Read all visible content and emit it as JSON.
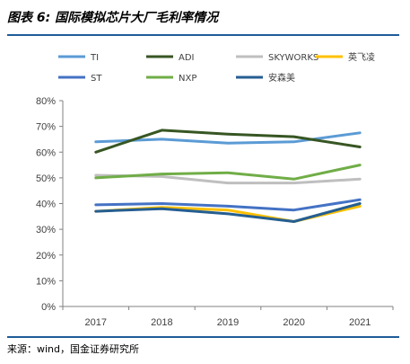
{
  "title": "图表 6: 国际模拟芯片大厂毛利率情况",
  "source": "来源：wind，国金证券研究所",
  "chart_data": {
    "type": "line",
    "x": [
      "2017",
      "2018",
      "2019",
      "2020",
      "2021"
    ],
    "ylim": [
      0,
      80
    ],
    "yticks": [
      "0%",
      "10%",
      "20%",
      "30%",
      "40%",
      "50%",
      "60%",
      "70%",
      "80%"
    ],
    "ytick_values": [
      0,
      10,
      20,
      30,
      40,
      50,
      60,
      70,
      80
    ],
    "grid": false,
    "legend_position": "top",
    "series": [
      {
        "name": "TI",
        "color": "#5b9bd5",
        "values": [
          64,
          65,
          63.5,
          64,
          67.5
        ]
      },
      {
        "name": "ADI",
        "color": "#375623",
        "values": [
          60,
          68.5,
          67,
          66,
          62
        ]
      },
      {
        "name": "SKYWORKS",
        "color": "#bfbfbf",
        "values": [
          51,
          50.5,
          48,
          48,
          49.5
        ]
      },
      {
        "name": "英飞凌",
        "color": "#ffc000",
        "values": [
          37,
          38.5,
          37.5,
          33,
          39
        ]
      },
      {
        "name": "ST",
        "color": "#4472c4",
        "values": [
          39.5,
          40,
          39,
          37.5,
          41.5
        ]
      },
      {
        "name": "NXP",
        "color": "#70ad47",
        "values": [
          50,
          51.5,
          52,
          49.5,
          55
        ]
      },
      {
        "name": "安森美",
        "color": "#255e91",
        "values": [
          37,
          38,
          36,
          33,
          40
        ]
      }
    ]
  }
}
